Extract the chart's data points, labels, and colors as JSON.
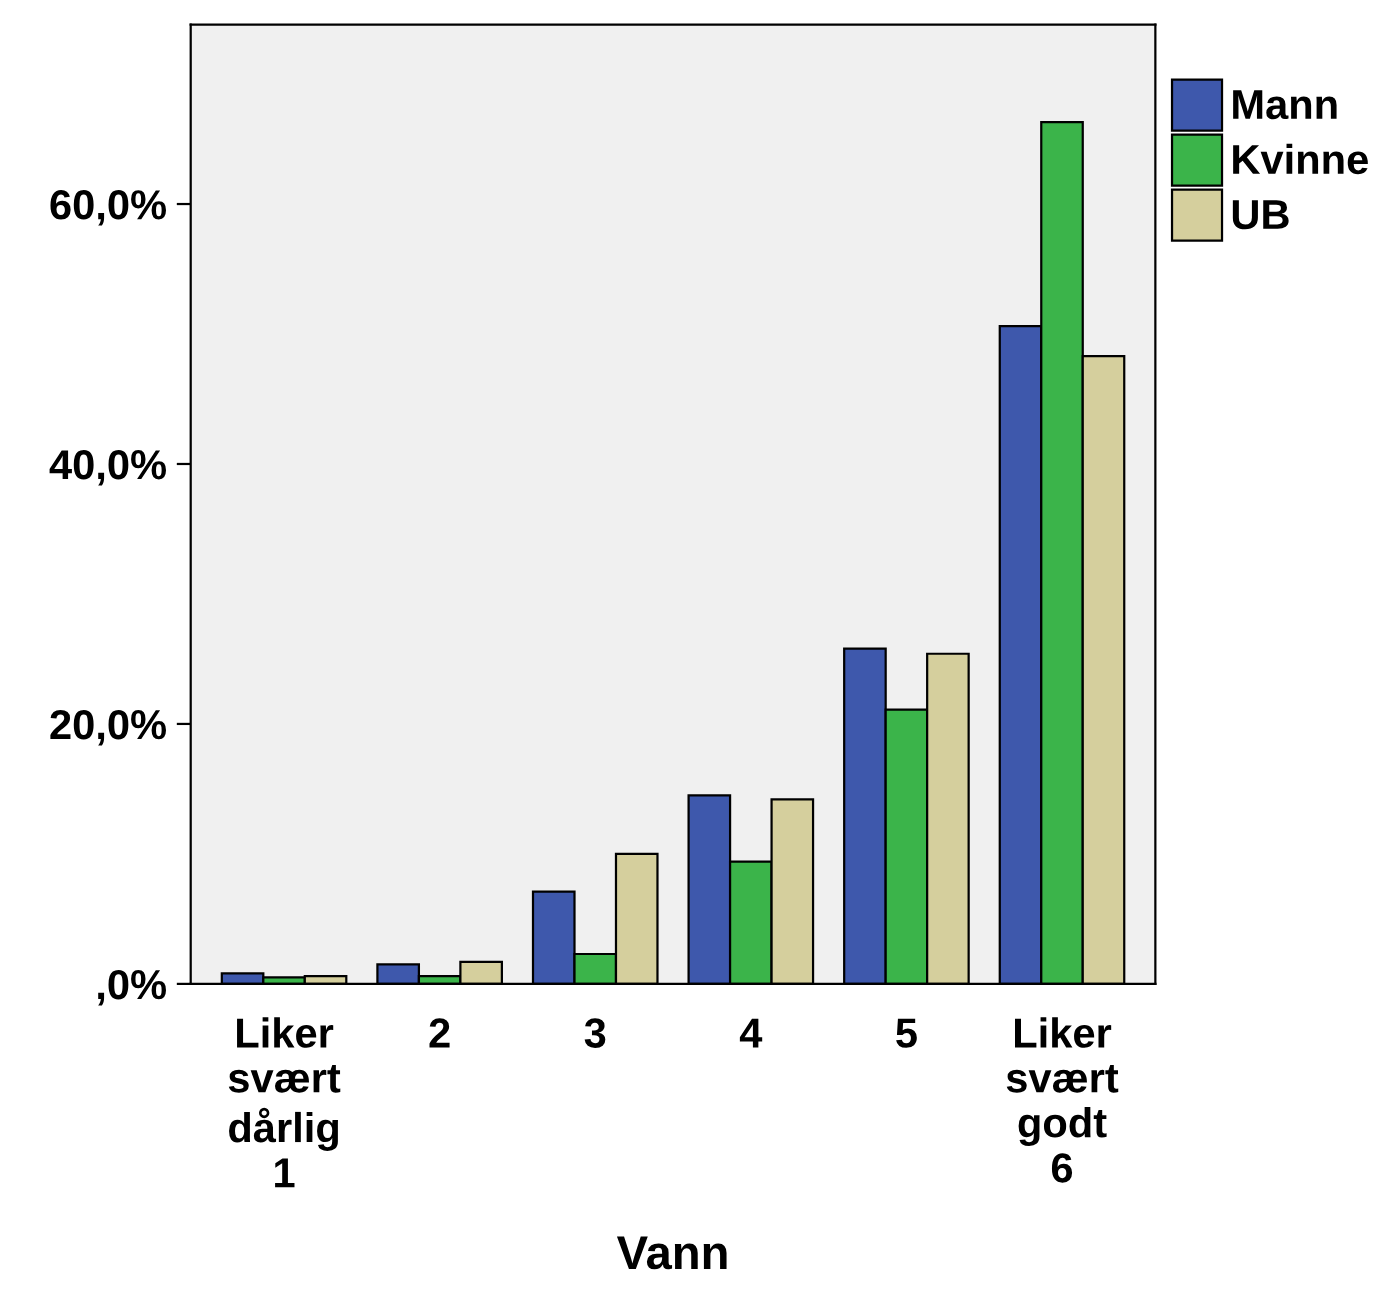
{
  "chart_data": {
    "type": "bar",
    "xlabel": "Vann",
    "categories": [
      "Liker\nsvært\ndårlig\n1",
      "2",
      "3",
      "4",
      "5",
      "Liker\nsvært\ngodt\n6"
    ],
    "series": [
      {
        "name": "Mann",
        "color": "#3e58ac",
        "values": [
          0.8,
          1.5,
          7.1,
          14.5,
          25.8,
          50.6
        ]
      },
      {
        "name": "Kvinne",
        "color": "#3bb44a",
        "values": [
          0.5,
          0.6,
          2.3,
          9.4,
          21.1,
          66.3
        ]
      },
      {
        "name": "UB",
        "color": "#d5cf9d",
        "values": [
          0.6,
          1.7,
          10.0,
          14.2,
          25.4,
          48.3
        ]
      }
    ],
    "ylim": [
      0,
      73.8
    ],
    "yticks": [
      {
        "value": 0,
        "label": ",0%"
      },
      {
        "value": 20,
        "label": "20,0%"
      },
      {
        "value": 40,
        "label": "40,0%"
      },
      {
        "value": 60,
        "label": "60,0%"
      }
    ],
    "legend": "top right",
    "grid": false
  }
}
